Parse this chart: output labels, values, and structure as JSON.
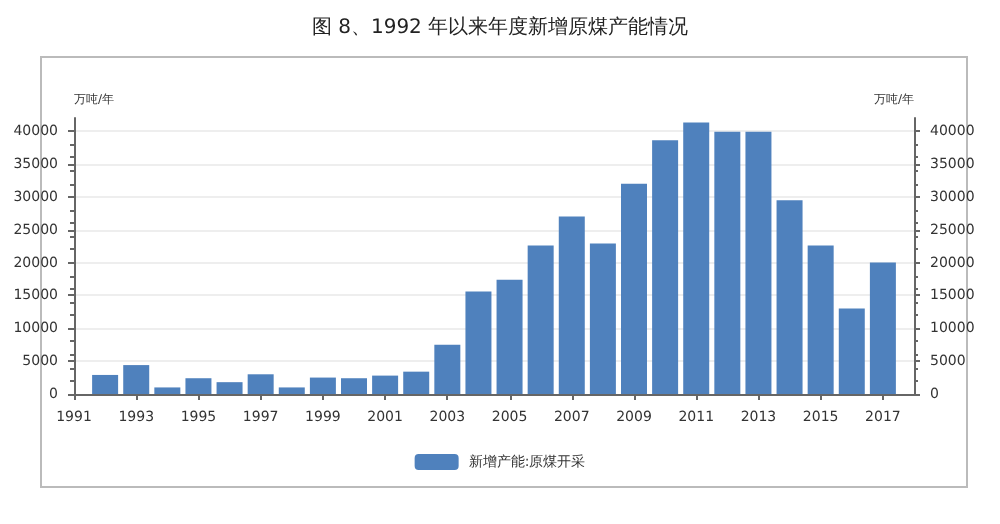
{
  "chart_data": {
    "type": "bar",
    "title": "图 8、1992 年以来年度新增原煤产能情况",
    "ylabel": "万吨/年",
    "y2label": "万吨/年",
    "x": [
      1992,
      1993,
      1994,
      1995,
      1996,
      1997,
      1998,
      1999,
      2000,
      2001,
      2002,
      2003,
      2004,
      2005,
      2006,
      2007,
      2008,
      2009,
      2010,
      2011,
      2012,
      2013,
      2014,
      2015,
      2016,
      2017
    ],
    "series": [
      {
        "name": "新增产能:原煤开采",
        "color": "#4f81bd",
        "values": [
          2900,
          4400,
          1000,
          2400,
          1800,
          3000,
          1000,
          2500,
          2400,
          2800,
          3400,
          7500,
          15600,
          17400,
          22600,
          27000,
          22900,
          32000,
          38600,
          41300,
          39900,
          39900,
          29500,
          22600,
          13000,
          20000
        ]
      }
    ],
    "xlim": [
      1991,
      2018
    ],
    "xticks": [
      1991,
      1993,
      1995,
      1997,
      1999,
      2001,
      2003,
      2005,
      2007,
      2009,
      2011,
      2013,
      2015,
      2017
    ],
    "ylim": [
      0,
      42000
    ],
    "yticks": [
      0,
      5000,
      10000,
      15000,
      20000,
      25000,
      30000,
      35000,
      40000
    ],
    "y2lim": [
      0,
      42000
    ],
    "y2ticks": [
      0,
      5000,
      10000,
      15000,
      20000,
      25000,
      30000,
      35000,
      40000
    ],
    "grid": "y",
    "legend": "bottom"
  }
}
